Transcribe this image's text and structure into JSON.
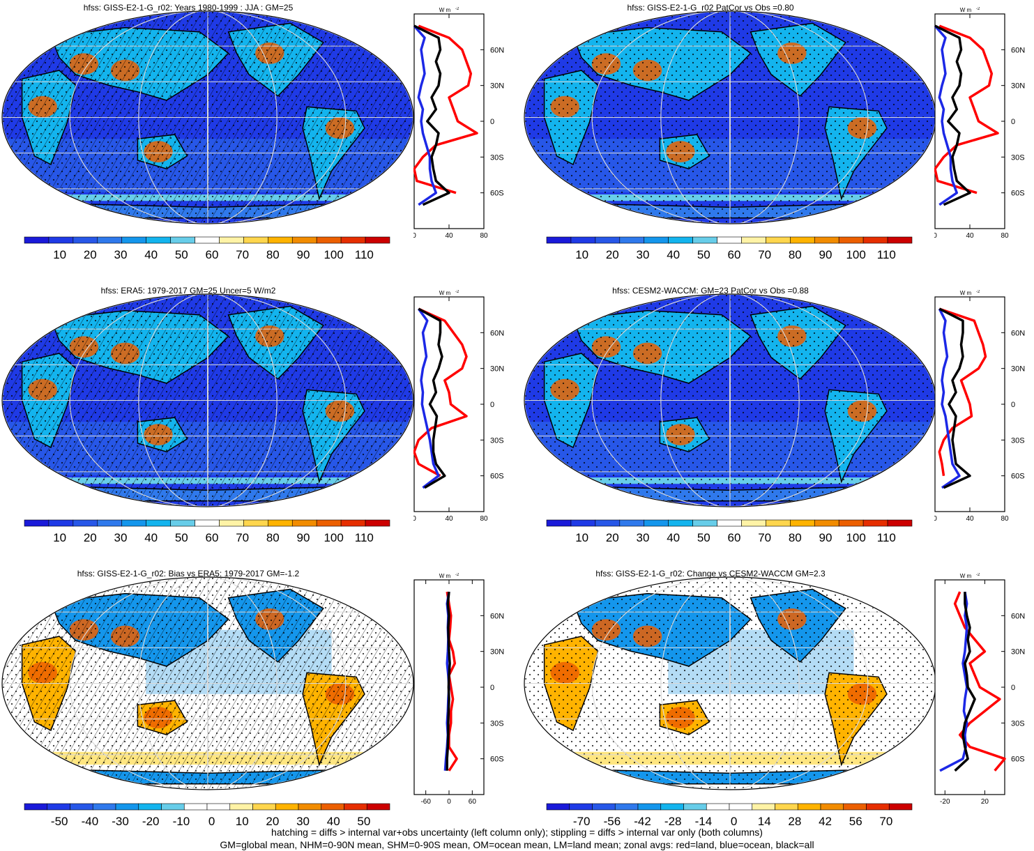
{
  "chart_data": [
    {
      "type": "heatmap",
      "title": "hfss: GISS-E2-1-G_r02: Years 1980-1999 : JJA : GM=25",
      "colorbar": [
        "10",
        "20",
        "30",
        "40",
        "50",
        "60",
        "70",
        "80",
        "90",
        "100",
        "110"
      ],
      "palette": "seq",
      "hatched": true,
      "zonal": {
        "units_label": "W m",
        "x_ticks": [
          "0",
          "40",
          "80"
        ],
        "xlim": [
          0,
          80
        ],
        "y_ticks": [
          "60N",
          "30N",
          "0",
          "30S",
          "60S"
        ],
        "lat": [
          80,
          70,
          60,
          50,
          40,
          30,
          20,
          10,
          0,
          -10,
          -20,
          -30,
          -40,
          -50,
          -60,
          -70
        ],
        "land": [
          5,
          40,
          55,
          60,
          65,
          62,
          40,
          45,
          50,
          72,
          25,
          10,
          0,
          3,
          48,
          null
        ],
        "ocean": [
          0,
          12,
          8,
          10,
          12,
          8,
          5,
          10,
          8,
          10,
          14,
          18,
          18,
          20,
          25,
          5
        ],
        "all": [
          0,
          28,
          30,
          25,
          30,
          28,
          20,
          25,
          15,
          28,
          25,
          20,
          22,
          25,
          40,
          10
        ]
      }
    },
    {
      "type": "heatmap",
      "title": "hfss: GISS-E2-1-G_r02 PatCor vs Obs =0.80",
      "colorbar": [
        "10",
        "20",
        "30",
        "40",
        "50",
        "60",
        "70",
        "80",
        "90",
        "100",
        "110"
      ],
      "palette": "seq",
      "hatched": false,
      "zonal": {
        "units_label": "W m",
        "x_ticks": [
          "0",
          "40",
          "80"
        ],
        "xlim": [
          0,
          80
        ],
        "y_ticks": [
          "60N",
          "30N",
          "0",
          "30S",
          "60S"
        ],
        "lat": [
          80,
          70,
          60,
          50,
          40,
          30,
          20,
          10,
          0,
          -10,
          -20,
          -30,
          -40,
          -50,
          -60,
          -70
        ],
        "land": [
          5,
          40,
          55,
          60,
          65,
          62,
          40,
          45,
          50,
          72,
          25,
          10,
          0,
          3,
          48,
          null
        ],
        "ocean": [
          0,
          12,
          8,
          10,
          12,
          8,
          5,
          10,
          8,
          10,
          14,
          18,
          18,
          20,
          25,
          5
        ],
        "all": [
          0,
          28,
          30,
          25,
          30,
          28,
          20,
          25,
          15,
          28,
          25,
          20,
          22,
          25,
          40,
          10
        ]
      }
    },
    {
      "type": "heatmap",
      "title": "hfss: ERA5: 1979-2017 GM=25 Uncer=5 W/m2",
      "colorbar": [
        "10",
        "20",
        "30",
        "40",
        "50",
        "60",
        "70",
        "80",
        "90",
        "100",
        "110"
      ],
      "palette": "seq",
      "hatched": true,
      "zonal": {
        "units_label": "W m",
        "x_ticks": [
          "0",
          "40",
          "80"
        ],
        "xlim": [
          0,
          80
        ],
        "y_ticks": [
          "60N",
          "30N",
          "0",
          "30S",
          "60S"
        ],
        "lat": [
          80,
          70,
          60,
          50,
          40,
          30,
          20,
          10,
          0,
          -10,
          -20,
          -30,
          -40,
          -50,
          -60,
          -70
        ],
        "land": [
          5,
          35,
          45,
          55,
          60,
          55,
          35,
          40,
          42,
          60,
          20,
          5,
          0,
          5,
          30,
          null
        ],
        "ocean": [
          5,
          15,
          10,
          12,
          14,
          10,
          8,
          10,
          9,
          12,
          15,
          18,
          20,
          22,
          28,
          10
        ],
        "all": [
          5,
          30,
          30,
          28,
          32,
          28,
          22,
          25,
          18,
          26,
          24,
          22,
          22,
          25,
          35,
          12
        ]
      }
    },
    {
      "type": "heatmap",
      "title": "hfss: CESM2-WACCM: GM=23 PatCor vs Obs =0.88",
      "colorbar": [
        "10",
        "20",
        "30",
        "40",
        "50",
        "60",
        "70",
        "80",
        "90",
        "100",
        "110"
      ],
      "palette": "seq",
      "hatched": false,
      "zonal": {
        "units_label": "W m",
        "x_ticks": [
          "0",
          "40",
          "80"
        ],
        "xlim": [
          0,
          80
        ],
        "y_ticks": [
          "60N",
          "30N",
          "0",
          "30S",
          "60S"
        ],
        "lat": [
          80,
          70,
          60,
          50,
          40,
          30,
          20,
          10,
          0,
          -10,
          -20,
          -30,
          -40,
          -50,
          -60,
          -70
        ],
        "land": [
          5,
          45,
          50,
          55,
          58,
          50,
          30,
          35,
          40,
          42,
          20,
          10,
          5,
          8,
          10,
          null
        ],
        "ocean": [
          5,
          12,
          10,
          12,
          14,
          10,
          8,
          10,
          8,
          12,
          14,
          16,
          18,
          20,
          28,
          8
        ],
        "all": [
          5,
          32,
          32,
          30,
          32,
          28,
          20,
          24,
          16,
          24,
          22,
          20,
          22,
          24,
          40,
          10
        ]
      }
    },
    {
      "type": "heatmap",
      "title": "hfss: GISS-E2-1-G_r02: Bias vs ERA5: 1979-2017 GM=-1.2",
      "colorbar": [
        "-50",
        "-40",
        "-30",
        "-20",
        "-10",
        "0",
        "10",
        "20",
        "30",
        "40",
        "50"
      ],
      "palette": "div",
      "hatched": true,
      "zonal": {
        "units_label": "W m",
        "x_ticks": [
          "-60",
          "0",
          "60"
        ],
        "xlim": [
          -90,
          90
        ],
        "y_ticks": [
          "60N",
          "30N",
          "0",
          "30S",
          "60S"
        ],
        "lat": [
          80,
          70,
          60,
          50,
          40,
          30,
          20,
          10,
          0,
          -10,
          -20,
          -30,
          -40,
          -50,
          -60,
          -70
        ],
        "land": [
          -5,
          0,
          5,
          3,
          0,
          10,
          15,
          0,
          5,
          10,
          5,
          5,
          0,
          0,
          20,
          0
        ],
        "ocean": [
          0,
          -5,
          -2,
          -3,
          -2,
          -3,
          -5,
          -2,
          0,
          -2,
          -3,
          -5,
          -3,
          -5,
          -8,
          -10
        ],
        "all": [
          0,
          -3,
          0,
          -2,
          -1,
          0,
          2,
          0,
          -1,
          0,
          -1,
          -2,
          -2,
          -3,
          -5,
          -5
        ]
      }
    },
    {
      "type": "heatmap",
      "title": "hfss: GISS-E2-1-G_r02: Change vs CESM2-WACCM GM=2.3",
      "colorbar": [
        "-70",
        "-56",
        "-42",
        "-28",
        "-14",
        "0",
        "14",
        "28",
        "42",
        "56",
        "70"
      ],
      "palette": "div",
      "hatched": false,
      "zonal": {
        "units_label": "W m",
        "x_ticks": [
          "-20",
          "20"
        ],
        "xlim": [
          -30,
          40
        ],
        "y_ticks": [
          "60N",
          "30N",
          "0",
          "30S",
          "60S"
        ],
        "lat": [
          80,
          70,
          60,
          50,
          40,
          30,
          20,
          10,
          0,
          -10,
          -20,
          -30,
          -40,
          -50,
          -60,
          -70
        ],
        "land": [
          -5,
          -10,
          -5,
          0,
          10,
          20,
          5,
          10,
          15,
          35,
          20,
          5,
          -5,
          5,
          40,
          30
        ],
        "ocean": [
          0,
          2,
          0,
          2,
          1,
          0,
          -2,
          0,
          2,
          0,
          -1,
          2,
          0,
          1,
          -2,
          -25
        ],
        "all": [
          0,
          0,
          2,
          5,
          3,
          5,
          0,
          2,
          3,
          10,
          5,
          0,
          -2,
          0,
          3,
          -10
        ]
      }
    }
  ],
  "footer": {
    "line1": "hatching = diffs > internal var+obs uncertainty (left column only); stippling = diffs > internal var only (both columns)",
    "line2": "GM=global mean, NHM=0-90N mean, SHM=0-90S mean, OM=ocean mean, LM=land mean; zonal avgs: red=land, blue=ocean, black=all"
  },
  "colors": {
    "land": "#ff0000",
    "ocean": "#1c28e6",
    "all": "#000000",
    "seq_palette": [
      "#1a1ad9",
      "#1f3ae6",
      "#2757e8",
      "#2f79ec",
      "#1496ec",
      "#13b4ee",
      "#67cde9",
      "#ffffff",
      "#fff3a6",
      "#ffd64d",
      "#ffb300",
      "#f28c00",
      "#ec5f00",
      "#e62e00",
      "#cc0000"
    ],
    "div_palette": [
      "#1a1ad9",
      "#1f3ae6",
      "#2757e8",
      "#2f79ec",
      "#1496ec",
      "#13b4ee",
      "#67cde9",
      "#ffffff",
      "#ffffff",
      "#fff3a6",
      "#ffd64d",
      "#ffb300",
      "#f28c00",
      "#ec5f00",
      "#e62e00",
      "#cc0000"
    ]
  }
}
